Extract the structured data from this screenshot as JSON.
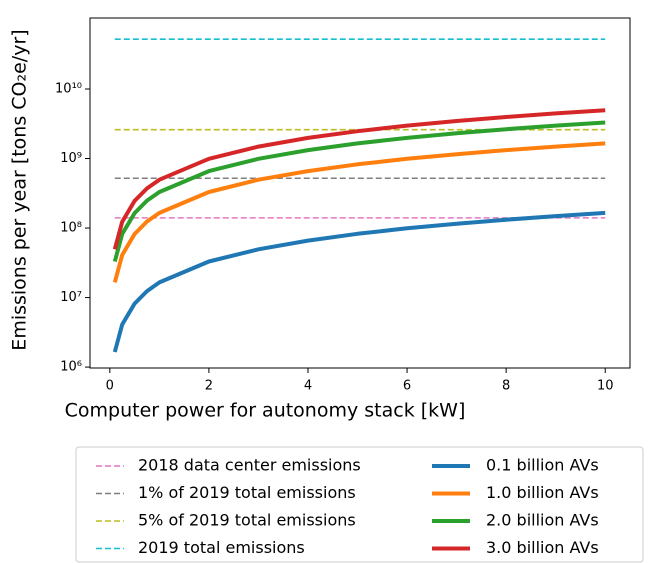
{
  "chart_data": {
    "type": "line",
    "xlabel": "Computer power for autonomy stack [kW]",
    "ylabel": "Emissions per year [tons CO₂e/yr]",
    "log_y": true,
    "x": [
      0.1,
      0.25,
      0.5,
      0.75,
      1,
      2,
      3,
      4,
      5,
      6,
      7,
      8,
      9,
      10
    ],
    "xlim": [
      -0.4,
      10.5
    ],
    "xticks": [
      0,
      2,
      4,
      6,
      8,
      10
    ],
    "ylim": [
      970000,
      105000000000
    ],
    "yticks": [
      {
        "value": 1000000,
        "label": "10⁶"
      },
      {
        "value": 10000000,
        "label": "10⁷"
      },
      {
        "value": 100000000,
        "label": "10⁸"
      },
      {
        "value": 1000000000,
        "label": "10⁹"
      },
      {
        "value": 10000000000,
        "label": "10¹⁰"
      }
    ],
    "hlines": [
      {
        "name": "2018 data center emissions",
        "color": "#e377c2",
        "value": 140000000
      },
      {
        "name": "1% of 2019 total emissions",
        "color": "#7f7f7f",
        "value": 520000000
      },
      {
        "name": "5% of 2019 total emissions",
        "color": "#bcbd22",
        "value": 2600000000
      },
      {
        "name": "2019 total emissions",
        "color": "#17becf",
        "value": 52000000000
      }
    ],
    "series": [
      {
        "name": "0.1 billion AVs",
        "color": "#1f77b4",
        "values": [
          1650000,
          4100000,
          8200000,
          12400000,
          16500000,
          33000000,
          49500000,
          66000000,
          82500000,
          99000000,
          115500000,
          132000000,
          148500000,
          165000000
        ]
      },
      {
        "name": "1.0 billion AVs",
        "color": "#ff7f0e",
        "values": [
          16500000,
          41000000,
          82000000,
          124000000,
          165000000,
          330000000,
          495000000,
          660000000,
          825000000,
          990000000,
          1155000000,
          1320000000,
          1485000000,
          1650000000
        ]
      },
      {
        "name": "2.0 billion AVs",
        "color": "#2ca02c",
        "values": [
          33000000,
          82000000,
          164000000,
          248000000,
          330000000,
          660000000,
          990000000,
          1320000000,
          1650000000,
          1980000000,
          2310000000,
          2640000000,
          2970000000,
          3300000000
        ]
      },
      {
        "name": "3.0 billion AVs",
        "color": "#d62728",
        "values": [
          49500000,
          123000000,
          246000000,
          372000000,
          495000000,
          990000000,
          1485000000,
          1980000000,
          2475000000,
          2970000000,
          3465000000,
          3960000000,
          4455000000,
          4950000000
        ]
      }
    ],
    "legend": "below"
  }
}
